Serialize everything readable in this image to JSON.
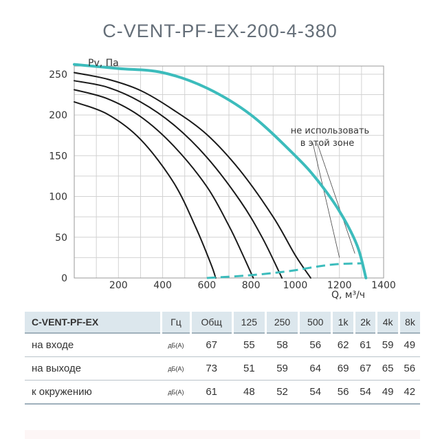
{
  "chart_data": {
    "type": "line",
    "title": "C-VENT-PF-EX-200-4-380",
    "ylabel": "Pv, Па",
    "xlabel": "Q, м³/ч",
    "xlim": [
      0,
      1400
    ],
    "ylim": [
      0,
      260
    ],
    "xticks": [
      200,
      400,
      600,
      800,
      1000,
      1200,
      1400
    ],
    "yticks": [
      0,
      50,
      100,
      150,
      200,
      250
    ],
    "grid": true,
    "annotation": "не использовать в этой зоне",
    "series": [
      {
        "points": [
          [
            0,
            262
          ],
          [
            200,
            257
          ],
          [
            400,
            252
          ],
          [
            600,
            233
          ],
          [
            800,
            200
          ],
          [
            1000,
            150
          ],
          [
            1100,
            120
          ],
          [
            1200,
            82
          ],
          [
            1280,
            40
          ],
          [
            1320,
            0
          ]
        ],
        "color": "#3cbcbc",
        "width": 4
      },
      {
        "points": [
          [
            0,
            252
          ],
          [
            150,
            244
          ],
          [
            300,
            230
          ],
          [
            450,
            206
          ],
          [
            600,
            176
          ],
          [
            750,
            132
          ],
          [
            900,
            75
          ],
          [
            1000,
            28
          ],
          [
            1070,
            0
          ]
        ],
        "color": "#1a1a1a",
        "width": 2
      },
      {
        "points": [
          [
            0,
            242
          ],
          [
            150,
            234
          ],
          [
            300,
            216
          ],
          [
            450,
            188
          ],
          [
            600,
            148
          ],
          [
            750,
            95
          ],
          [
            850,
            50
          ],
          [
            940,
            0
          ]
        ],
        "color": "#1a1a1a",
        "width": 2
      },
      {
        "points": [
          [
            0,
            231
          ],
          [
            150,
            220
          ],
          [
            300,
            198
          ],
          [
            450,
            162
          ],
          [
            600,
            112
          ],
          [
            700,
            64
          ],
          [
            760,
            30
          ],
          [
            810,
            0
          ]
        ],
        "color": "#1a1a1a",
        "width": 2
      },
      {
        "points": [
          [
            0,
            216
          ],
          [
            150,
            201
          ],
          [
            300,
            170
          ],
          [
            450,
            117
          ],
          [
            550,
            62
          ],
          [
            620,
            16
          ],
          [
            640,
            0
          ]
        ],
        "color": "#1a1a1a",
        "width": 2
      },
      {
        "points": [
          [
            600,
            0
          ],
          [
            780,
            3
          ],
          [
            960,
            8
          ],
          [
            1100,
            14
          ],
          [
            1190,
            17
          ],
          [
            1300,
            18
          ]
        ],
        "color": "#3cbcbc",
        "width": 3,
        "dashed": true
      }
    ]
  },
  "table": {
    "header": [
      "C-VENT-PF-EX",
      "Гц",
      "Общ",
      "125",
      "250",
      "500",
      "1k",
      "2k",
      "4k",
      "8k"
    ],
    "rows": [
      {
        "label": "на входе",
        "unit": "дБ(А)",
        "values": [
          "67",
          "55",
          "58",
          "56",
          "62",
          "61",
          "59",
          "49"
        ]
      },
      {
        "label": "на выходе",
        "unit": "дБ(А)",
        "values": [
          "73",
          "51",
          "59",
          "64",
          "69",
          "67",
          "65",
          "56"
        ]
      },
      {
        "label": "к окружению",
        "unit": "дБ(А)",
        "values": [
          "61",
          "48",
          "52",
          "54",
          "56",
          "54",
          "49",
          "42"
        ]
      }
    ]
  }
}
